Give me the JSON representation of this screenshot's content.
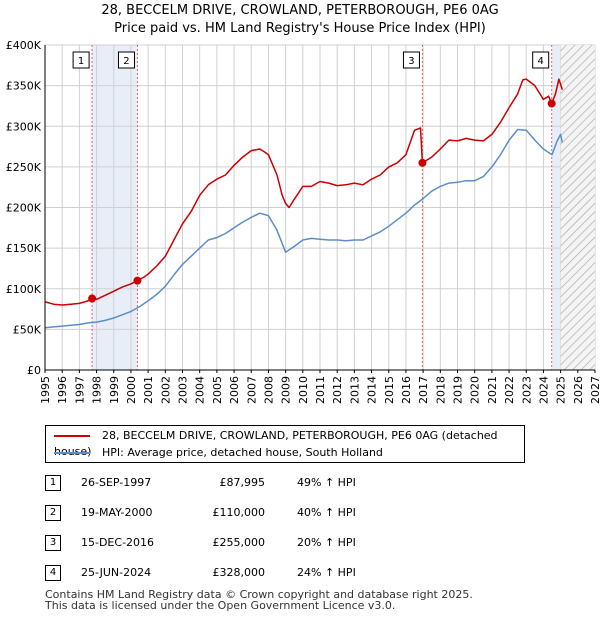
{
  "title_line1": "28, BECCELM DRIVE, CROWLAND, PETERBOROUGH, PE6 0AG",
  "title_line2": "Price paid vs. HM Land Registry's House Price Index (HPI)",
  "colors": {
    "property": "#cc0000",
    "hpi": "#5b8ec9",
    "shade": "#e8eef8",
    "marker_line": "#e06666",
    "grid": "#d0d0d0"
  },
  "chart_data": {
    "type": "line",
    "title": "Price paid vs. HM Land Registry's House Price Index (HPI)",
    "xlim": [
      1995,
      2027
    ],
    "ylim": [
      0,
      400000
    ],
    "x_ticks": [
      1995,
      1996,
      1997,
      1998,
      1999,
      2000,
      2001,
      2002,
      2003,
      2004,
      2005,
      2006,
      2007,
      2008,
      2009,
      2010,
      2011,
      2012,
      2013,
      2014,
      2015,
      2016,
      2017,
      2018,
      2019,
      2020,
      2021,
      2022,
      2023,
      2024,
      2025,
      2026,
      2027
    ],
    "y_ticks": [
      {
        "value": 0,
        "label": "£0"
      },
      {
        "value": 50000,
        "label": "£50K"
      },
      {
        "value": 100000,
        "label": "£100K"
      },
      {
        "value": 150000,
        "label": "£150K"
      },
      {
        "value": 200000,
        "label": "£200K"
      },
      {
        "value": 250000,
        "label": "£250K"
      },
      {
        "value": 300000,
        "label": "£300K"
      },
      {
        "value": 350000,
        "label": "£350K"
      },
      {
        "value": 400000,
        "label": "£400K"
      }
    ],
    "future_hatch_from": 2025.0,
    "shaded_ranges": [
      [
        1997.74,
        2000.38
      ],
      [
        2024.48,
        2025.0
      ]
    ],
    "series": [
      {
        "name": "28, BECCELM DRIVE, CROWLAND, PETERBOROUGH, PE6 0AG (detached house)",
        "color": "#cc0000",
        "points": [
          [
            1995.0,
            84000
          ],
          [
            1995.5,
            81000
          ],
          [
            1996.0,
            80000
          ],
          [
            1996.5,
            81000
          ],
          [
            1997.0,
            82000
          ],
          [
            1997.5,
            85000
          ],
          [
            1997.74,
            87995
          ],
          [
            1998.0,
            87000
          ],
          [
            1998.5,
            92000
          ],
          [
            1999.0,
            97000
          ],
          [
            1999.5,
            102000
          ],
          [
            2000.0,
            106000
          ],
          [
            2000.38,
            110000
          ],
          [
            2000.8,
            115000
          ],
          [
            2001.0,
            118000
          ],
          [
            2001.5,
            128000
          ],
          [
            2002.0,
            140000
          ],
          [
            2002.5,
            160000
          ],
          [
            2003.0,
            180000
          ],
          [
            2003.5,
            195000
          ],
          [
            2004.0,
            215000
          ],
          [
            2004.5,
            228000
          ],
          [
            2005.0,
            235000
          ],
          [
            2005.5,
            240000
          ],
          [
            2006.0,
            252000
          ],
          [
            2006.5,
            262000
          ],
          [
            2007.0,
            270000
          ],
          [
            2007.5,
            272000
          ],
          [
            2007.8,
            268000
          ],
          [
            2008.0,
            265000
          ],
          [
            2008.5,
            240000
          ],
          [
            2008.8,
            215000
          ],
          [
            2009.0,
            205000
          ],
          [
            2009.2,
            200000
          ],
          [
            2009.5,
            210000
          ],
          [
            2010.0,
            226000
          ],
          [
            2010.5,
            226000
          ],
          [
            2011.0,
            232000
          ],
          [
            2011.5,
            230000
          ],
          [
            2012.0,
            227000
          ],
          [
            2012.5,
            228000
          ],
          [
            2013.0,
            230000
          ],
          [
            2013.5,
            228000
          ],
          [
            2014.0,
            235000
          ],
          [
            2014.5,
            240000
          ],
          [
            2015.0,
            250000
          ],
          [
            2015.5,
            255000
          ],
          [
            2016.0,
            265000
          ],
          [
            2016.5,
            295000
          ],
          [
            2016.85,
            298000
          ],
          [
            2016.96,
            255000
          ],
          [
            2017.5,
            262000
          ],
          [
            2018.0,
            272000
          ],
          [
            2018.5,
            283000
          ],
          [
            2019.0,
            282000
          ],
          [
            2019.5,
            285000
          ],
          [
            2020.0,
            283000
          ],
          [
            2020.5,
            282000
          ],
          [
            2021.0,
            290000
          ],
          [
            2021.5,
            305000
          ],
          [
            2022.0,
            323000
          ],
          [
            2022.5,
            340000
          ],
          [
            2022.8,
            357000
          ],
          [
            2023.0,
            358000
          ],
          [
            2023.5,
            350000
          ],
          [
            2024.0,
            333000
          ],
          [
            2024.3,
            337000
          ],
          [
            2024.48,
            328000
          ],
          [
            2024.7,
            340000
          ],
          [
            2024.9,
            358000
          ],
          [
            2025.1,
            345000
          ]
        ]
      },
      {
        "name": "HPI: Average price, detached house, South Holland",
        "color": "#5b8ec9",
        "points": [
          [
            1995.0,
            52000
          ],
          [
            1995.5,
            53000
          ],
          [
            1996.0,
            54000
          ],
          [
            1996.5,
            55000
          ],
          [
            1997.0,
            56000
          ],
          [
            1997.5,
            58000
          ],
          [
            1998.0,
            59000
          ],
          [
            1998.5,
            61000
          ],
          [
            1999.0,
            64000
          ],
          [
            1999.5,
            68000
          ],
          [
            2000.0,
            72000
          ],
          [
            2000.5,
            78000
          ],
          [
            2001.0,
            85000
          ],
          [
            2001.5,
            93000
          ],
          [
            2002.0,
            103000
          ],
          [
            2002.5,
            117000
          ],
          [
            2003.0,
            130000
          ],
          [
            2003.5,
            140000
          ],
          [
            2004.0,
            150000
          ],
          [
            2004.5,
            160000
          ],
          [
            2005.0,
            163000
          ],
          [
            2005.5,
            168000
          ],
          [
            2006.0,
            175000
          ],
          [
            2006.5,
            182000
          ],
          [
            2007.0,
            188000
          ],
          [
            2007.5,
            193000
          ],
          [
            2008.0,
            190000
          ],
          [
            2008.5,
            172000
          ],
          [
            2009.0,
            145000
          ],
          [
            2009.5,
            152000
          ],
          [
            2010.0,
            160000
          ],
          [
            2010.5,
            162000
          ],
          [
            2011.0,
            161000
          ],
          [
            2011.5,
            160000
          ],
          [
            2012.0,
            160000
          ],
          [
            2012.5,
            159000
          ],
          [
            2013.0,
            160000
          ],
          [
            2013.5,
            160000
          ],
          [
            2014.0,
            165000
          ],
          [
            2014.5,
            170000
          ],
          [
            2015.0,
            177000
          ],
          [
            2015.5,
            185000
          ],
          [
            2016.0,
            193000
          ],
          [
            2016.5,
            203000
          ],
          [
            2017.0,
            211000
          ],
          [
            2017.5,
            220000
          ],
          [
            2018.0,
            226000
          ],
          [
            2018.5,
            230000
          ],
          [
            2019.0,
            231000
          ],
          [
            2019.5,
            233000
          ],
          [
            2020.0,
            233000
          ],
          [
            2020.5,
            238000
          ],
          [
            2021.0,
            250000
          ],
          [
            2021.5,
            265000
          ],
          [
            2022.0,
            283000
          ],
          [
            2022.5,
            296000
          ],
          [
            2023.0,
            295000
          ],
          [
            2023.5,
            283000
          ],
          [
            2024.0,
            272000
          ],
          [
            2024.5,
            265000
          ],
          [
            2024.8,
            282000
          ],
          [
            2025.0,
            290000
          ],
          [
            2025.1,
            280000
          ]
        ]
      }
    ],
    "sales": [
      {
        "label": "1",
        "x": 1997.74,
        "y": 87995
      },
      {
        "label": "2",
        "x": 2000.38,
        "y": 110000
      },
      {
        "label": "3",
        "x": 2016.96,
        "y": 255000
      },
      {
        "label": "4",
        "x": 2024.48,
        "y": 328000
      }
    ]
  },
  "legend": {
    "property_label": "28, BECCELM DRIVE, CROWLAND, PETERBOROUGH, PE6 0AG (detached house)",
    "hpi_label": "HPI: Average price, detached house, South Holland"
  },
  "sales_table": [
    {
      "num": "1",
      "date": "26-SEP-1997",
      "price": "£87,995",
      "hpi": "49% ↑ HPI"
    },
    {
      "num": "2",
      "date": "19-MAY-2000",
      "price": "£110,000",
      "hpi": "40% ↑ HPI"
    },
    {
      "num": "3",
      "date": "15-DEC-2016",
      "price": "£255,000",
      "hpi": "20% ↑ HPI"
    },
    {
      "num": "4",
      "date": "25-JUN-2024",
      "price": "£328,000",
      "hpi": "24% ↑ HPI"
    }
  ],
  "footer_line1": "Contains HM Land Registry data © Crown copyright and database right 2025.",
  "footer_line2": "This data is licensed under the Open Government Licence v3.0."
}
